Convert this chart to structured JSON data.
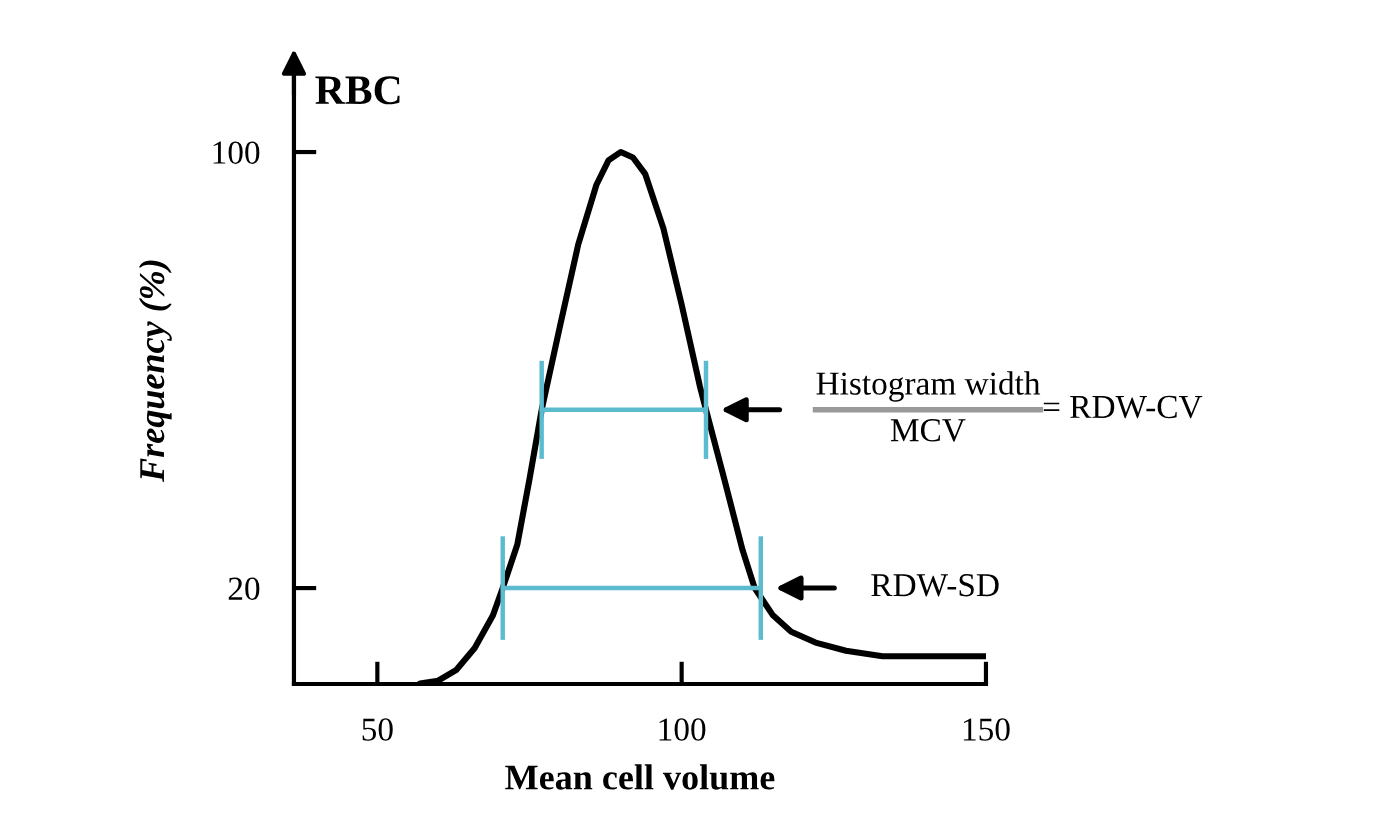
{
  "chart_data": {
    "type": "line",
    "title": "RBC",
    "xlabel": "Mean cell volume",
    "ylabel": "Frequency (%)",
    "xlim": [
      36.3,
      150
    ],
    "ylim": [
      2.4,
      117.6
    ],
    "xticks": [
      50,
      100,
      150
    ],
    "yticks": [
      20,
      100
    ],
    "grid": false,
    "series": [
      {
        "color": "#000000",
        "x": [
          57,
          60,
          63,
          66,
          69,
          70.6,
          73,
          75,
          77,
          80,
          83,
          86,
          88,
          90,
          92,
          94,
          97,
          100,
          103,
          104,
          107,
          110,
          112,
          115,
          118,
          122,
          127,
          133,
          140,
          150
        ],
        "values": [
          2.5,
          3,
          5,
          9,
          15,
          20,
          28,
          40,
          52.7,
          68,
          83,
          94,
          98.5,
          100,
          99,
          96,
          86,
          72,
          57,
          52.7,
          40,
          27,
          20,
          15,
          12,
          10,
          8.5,
          7.5,
          7.5,
          7.5
        ]
      },
      {
        "color": "#5bbcd0",
        "x": [
          77,
          104
        ],
        "values": [
          52.7,
          52.7
        ],
        "errors": [
          9,
          9
        ]
      },
      {
        "color": "#5bbcd0",
        "x": [
          70.6,
          113
        ],
        "values": [
          20,
          20
        ],
        "errors": [
          9.5,
          9.5
        ]
      }
    ],
    "annotations": [
      "Histogram width",
      "MCV",
      "= RDW-CV",
      "RDW-SD"
    ]
  }
}
